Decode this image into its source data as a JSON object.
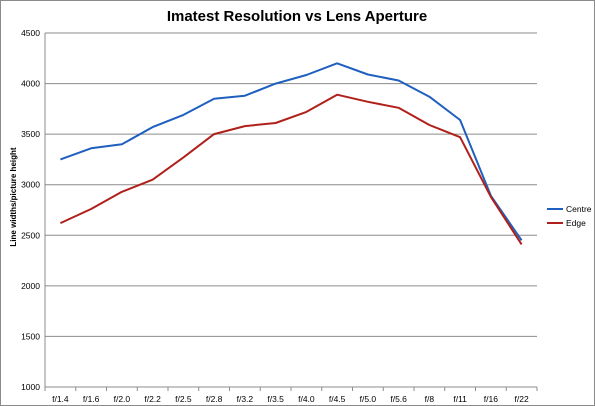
{
  "chart_data": {
    "type": "line",
    "title": "Imatest Resolution vs Lens Aperture",
    "xlabel": "",
    "ylabel": "Line widths/picture height",
    "ylim": [
      1000,
      4500
    ],
    "yticks": [
      1000,
      1500,
      2000,
      2500,
      3000,
      3500,
      4000,
      4500
    ],
    "categories": [
      "f/1.4",
      "f/1.6",
      "f/2.0",
      "f/2.2",
      "f/2.5",
      "f/2.8",
      "f/3.2",
      "f/3.5",
      "f/4.0",
      "f/4.5",
      "f/5.0",
      "f/5.6",
      "f/8",
      "f/11",
      "f/16",
      "f/22"
    ],
    "grid": true,
    "legend_position": "right",
    "series": [
      {
        "name": "Centre",
        "color": "#1f5fbf",
        "values": [
          3250,
          3360,
          3400,
          3570,
          3690,
          3850,
          3880,
          4000,
          4085,
          4200,
          4090,
          4030,
          3870,
          3640,
          2890,
          2450
        ]
      },
      {
        "name": "Edge",
        "color": "#b0201a",
        "values": [
          2620,
          2760,
          2930,
          3050,
          3270,
          3500,
          3580,
          3610,
          3720,
          3890,
          3820,
          3760,
          3590,
          3470,
          2880,
          2410
        ]
      }
    ]
  }
}
